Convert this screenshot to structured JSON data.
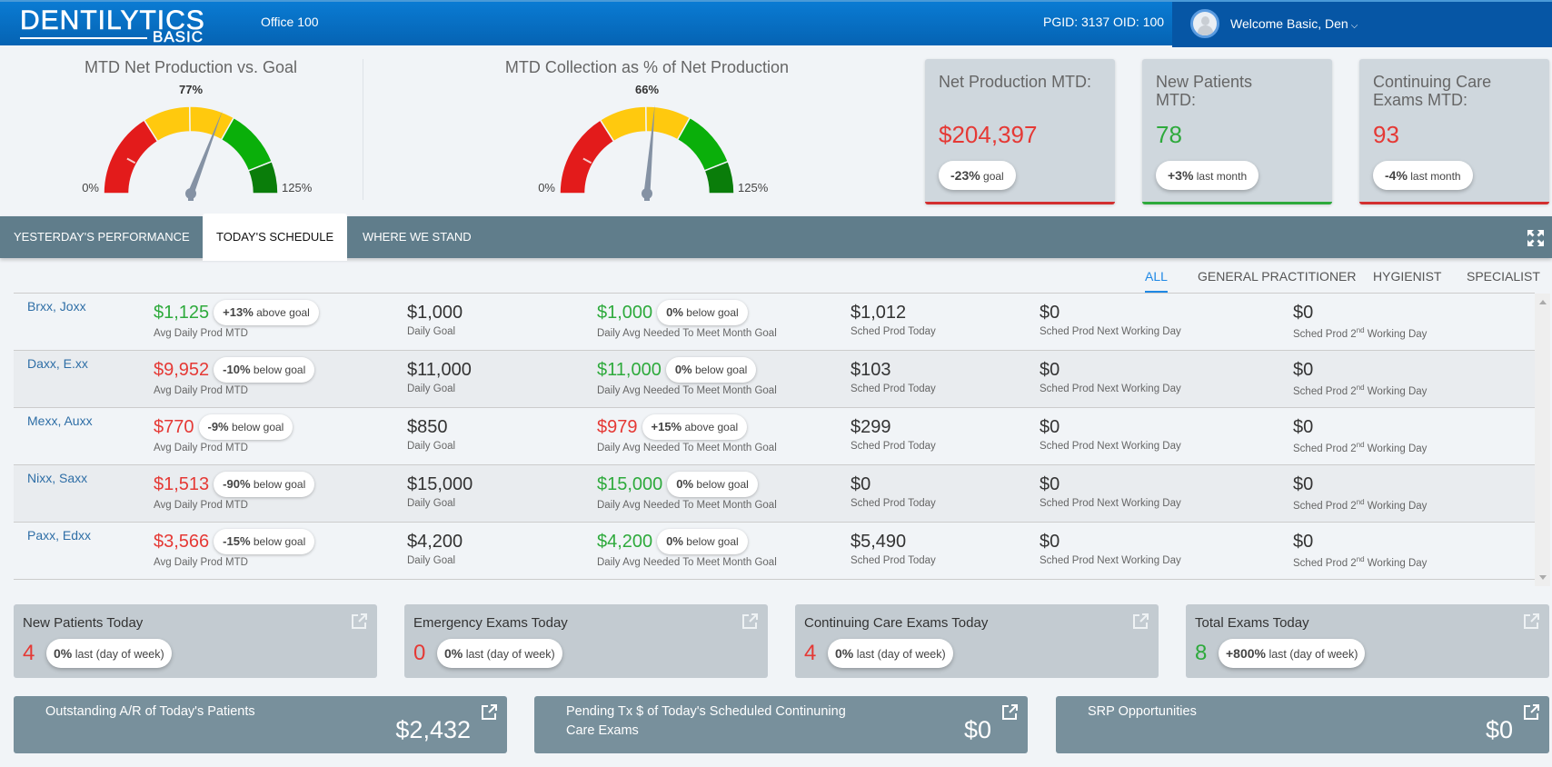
{
  "header": {
    "logo_main": "DENTILYTICS",
    "logo_sub": "BASIC",
    "office": "Office 100",
    "ids": "PGID: 3137 OID: 100",
    "welcome": "Welcome Basic, Den",
    "chevron": "⌄"
  },
  "gauges": [
    {
      "title": "MTD Net Production vs. Goal",
      "value_label": "77%",
      "value": 77,
      "min_label": "0%",
      "max_label": "125%",
      "min": 0,
      "max": 125,
      "bands": [
        {
          "from": 0,
          "to": 40,
          "color": "#e31b1b"
        },
        {
          "from": 40,
          "to": 62,
          "color": "#ffc90e"
        },
        {
          "from": 62,
          "to": 83,
          "color": "#ffc90e"
        },
        {
          "from": 83,
          "to": 110,
          "color": "#0aaf0a"
        },
        {
          "from": 110,
          "to": 125,
          "color": "#0a7d0a"
        }
      ],
      "needle_color": "#8592a4"
    },
    {
      "title": "MTD Collection as % of Net Production",
      "value_label": "66%",
      "value": 66,
      "min_label": "0%",
      "max_label": "125%",
      "min": 0,
      "max": 125,
      "bands": [
        {
          "from": 0,
          "to": 40,
          "color": "#e31b1b"
        },
        {
          "from": 40,
          "to": 62,
          "color": "#ffc90e"
        },
        {
          "from": 62,
          "to": 83,
          "color": "#ffc90e"
        },
        {
          "from": 83,
          "to": 110,
          "color": "#0aaf0a"
        },
        {
          "from": 110,
          "to": 125,
          "color": "#0a7d0a"
        }
      ],
      "needle_color": "#8592a4"
    }
  ],
  "kpis": [
    {
      "title": "Net Production MTD:",
      "value": "$204,397",
      "value_color": "#e53935",
      "pill_bold": "-23%",
      "pill_text": " goal",
      "bar_color": "#d32f2f"
    },
    {
      "title": "New Patients MTD:",
      "value": "78",
      "value_color": "#2eaa3c",
      "pill_bold": "+3%",
      "pill_text": " last month",
      "bar_color": "#2eaa3c"
    },
    {
      "title": "Continuing Care Exams MTD:",
      "value": "93",
      "value_color": "#e53935",
      "pill_bold": "-4%",
      "pill_text": " last month",
      "bar_color": "#d32f2f"
    }
  ],
  "tabs": [
    {
      "label": "YESTERDAY'S PERFORMANCE",
      "active": false
    },
    {
      "label": "TODAY'S SCHEDULE",
      "active": true
    },
    {
      "label": "WHERE WE STAND",
      "active": false
    }
  ],
  "filters": [
    {
      "label": "ALL",
      "active": true
    },
    {
      "label": "GENERAL PRACTITIONER",
      "active": false
    },
    {
      "label": "HYGIENIST",
      "active": false
    },
    {
      "label": "SPECIALIST",
      "active": false
    }
  ],
  "labels": {
    "avg_daily": "Avg Daily Prod MTD",
    "daily_goal": "Daily Goal",
    "needed": "Daily Avg Needed To Meet Month Goal",
    "sched_today": "Sched Prod Today",
    "sched_next": "Sched Prod Next Working Day",
    "sched_2nd_pre": "Sched Prod 2",
    "sched_2nd_sup": "nd",
    "sched_2nd_post": " Working Day"
  },
  "providers": [
    {
      "name": "Brxx, Joxx",
      "avg": "$1,125",
      "avg_color": "#2eaa3c",
      "avg_pill_bold": "+13%",
      "avg_pill_text": " above goal",
      "goal": "$1,000",
      "needed": "$1,000",
      "needed_color": "#2eaa3c",
      "needed_pill_bold": "0%",
      "needed_pill_text": " below goal",
      "today": "$1,012",
      "next": "$0",
      "second": "$0"
    },
    {
      "name": "Daxx, E.xx",
      "avg": "$9,952",
      "avg_color": "#e53935",
      "avg_pill_bold": "-10%",
      "avg_pill_text": " below goal",
      "goal": "$11,000",
      "needed": "$11,000",
      "needed_color": "#2eaa3c",
      "needed_pill_bold": "0%",
      "needed_pill_text": " below goal",
      "today": "$103",
      "next": "$0",
      "second": "$0"
    },
    {
      "name": "Mexx, Auxx",
      "avg": "$770",
      "avg_color": "#e53935",
      "avg_pill_bold": "-9%",
      "avg_pill_text": " below goal",
      "goal": "$850",
      "needed": "$979",
      "needed_color": "#e53935",
      "needed_pill_bold": "+15%",
      "needed_pill_text": " above goal",
      "today": "$299",
      "next": "$0",
      "second": "$0"
    },
    {
      "name": "Nixx, Saxx",
      "avg": "$1,513",
      "avg_color": "#e53935",
      "avg_pill_bold": "-90%",
      "avg_pill_text": " below goal",
      "goal": "$15,000",
      "needed": "$15,000",
      "needed_color": "#2eaa3c",
      "needed_pill_bold": "0%",
      "needed_pill_text": " below goal",
      "today": "$0",
      "next": "$0",
      "second": "$0"
    },
    {
      "name": "Paxx, Edxx",
      "avg": "$3,566",
      "avg_color": "#e53935",
      "avg_pill_bold": "-15%",
      "avg_pill_text": " below goal",
      "goal": "$4,200",
      "needed": "$4,200",
      "needed_color": "#2eaa3c",
      "needed_pill_bold": "0%",
      "needed_pill_text": " below goal",
      "today": "$5,490",
      "next": "$0",
      "second": "$0"
    }
  ],
  "today_cards": [
    {
      "title": "New Patients Today",
      "value": "4",
      "value_color": "#e53935",
      "pill_bold": "0%",
      "pill_text": " last (day of week)"
    },
    {
      "title": "Emergency Exams Today",
      "value": "0",
      "value_color": "#e53935",
      "pill_bold": "0%",
      "pill_text": " last (day of week)"
    },
    {
      "title": "Continuing Care Exams Today",
      "value": "4",
      "value_color": "#e53935",
      "pill_bold": "0%",
      "pill_text": " last (day of week)"
    },
    {
      "title": "Total Exams Today",
      "value": "8",
      "value_color": "#2eaa3c",
      "pill_bold": "+800%",
      "pill_text": " last (day of week)"
    }
  ],
  "money_cards": [
    {
      "title": "Outstanding A/R of Today's Patients",
      "value": "$2,432"
    },
    {
      "title": "Pending Tx $ of Today's Scheduled Continuning Care Exams",
      "value": "$0"
    },
    {
      "title": "SRP Opportunities",
      "value": "$0"
    }
  ],
  "icons": {
    "external_link": "external-link-icon",
    "expand": "expand-icon",
    "user": "user-icon"
  }
}
